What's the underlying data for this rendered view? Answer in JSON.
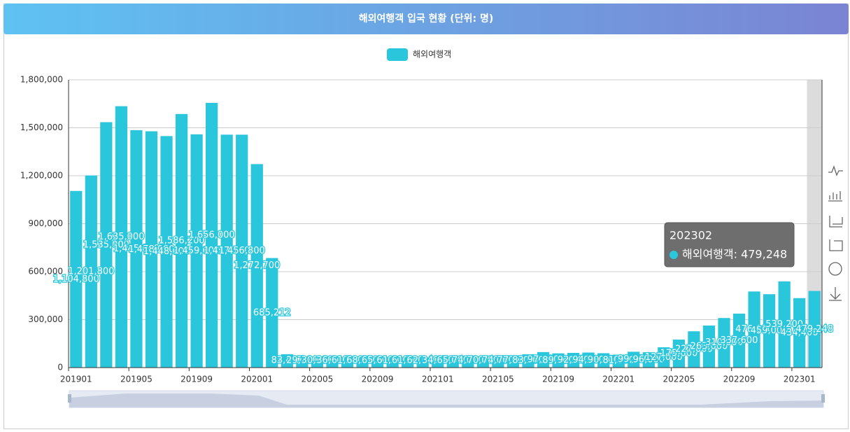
{
  "chart_data": {
    "type": "bar",
    "title": "해외여행객 입국 현황 (단위: 명)",
    "categories": [
      "201901",
      null,
      null,
      null,
      "201905",
      null,
      null,
      null,
      "201909",
      null,
      null,
      null,
      "202001",
      null,
      null,
      null,
      "202005",
      null,
      null,
      null,
      "202009",
      null,
      null,
      null,
      "202101",
      null,
      null,
      null,
      "202105",
      null,
      null,
      null,
      "202109",
      null,
      null,
      null,
      "202201",
      null,
      null,
      null,
      "202205",
      null,
      null,
      null,
      "202209",
      null,
      null,
      null,
      "202301",
      null
    ],
    "series": [
      {
        "name": "해외여행객",
        "color": "#29c6dc",
        "values": [
          1104800,
          1201800,
          1535000,
          1635000,
          1485000,
          1478000,
          1448000,
          1586200,
          1459000,
          1656000,
          1457000,
          1456800,
          1272700,
          685212,
          83497,
          29300,
          30600,
          36800,
          61500,
          68000,
          65000,
          61000,
          61500,
          62340,
          34650,
          65000,
          74000,
          70000,
          74000,
          77000,
          83000,
          97000,
          89000,
          92000,
          94000,
          90000,
          81000,
          99000,
          96000,
          127000,
          175000,
          227000,
          263000,
          310000,
          337600,
          476000,
          459000,
          539200,
          434400,
          479248
        ],
        "value_labels": [
          "1,104,800",
          "1,201,800",
          "1,535,000",
          "1,635,000",
          "1,485,000",
          "1,478,000",
          "1,448,000",
          "1,586,200",
          "1,459,000",
          "1,656,000",
          "1,457,000",
          "1,456,800",
          "1,272,700",
          "685,212",
          "83,497",
          "29,300",
          "30,600",
          "36,800",
          "61,500",
          "68,000",
          "65,000",
          "61,000",
          "61,500",
          "62,340",
          "34,650",
          "65,000",
          "74,000",
          "70,000",
          "74,000",
          "77,000",
          "83,000",
          "97,000",
          "89,000",
          "92,000",
          "94,000",
          "90,000",
          "81,000",
          "99,000",
          "96,000",
          "127,000",
          "175,000",
          "227,000",
          "263,000",
          "310,000",
          "337,600",
          "476,000",
          "459,000",
          "539,200",
          "434,400",
          "479,248"
        ]
      }
    ],
    "ylim": [
      0,
      1800000
    ],
    "yticks": [
      0,
      {
        "value": 300000,
        "label": "300,000"
      },
      {
        "value": 600000,
        "label": "600,000"
      },
      {
        "value": 900000,
        "label": "900,000"
      },
      {
        "value": 1200000,
        "label": "1,200,000"
      },
      {
        "value": 1500000,
        "label": "1,500,000"
      },
      {
        "value": 1800000,
        "label": "1,800,000"
      }
    ],
    "grid": true,
    "legend": "top",
    "tooltip": {
      "title": "202302",
      "text": "해외여행객: 479,248"
    }
  }
}
